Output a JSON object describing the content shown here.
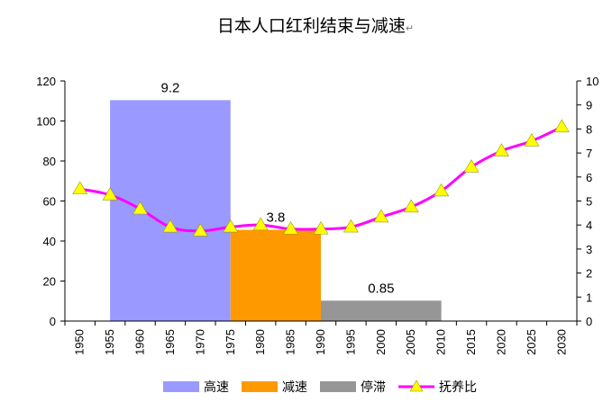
{
  "chart_data": {
    "type": "bar+line",
    "title": "日本人口红利结束与减速",
    "title_mark": "↵",
    "x": [
      "1950",
      "1955",
      "1960",
      "1965",
      "1970",
      "1975",
      "1980",
      "1985",
      "1990",
      "1995",
      "2000",
      "2005",
      "2010",
      "2015",
      "2020",
      "2025",
      "2030"
    ],
    "ylim_left": [
      0,
      120
    ],
    "yticks_left": [
      0,
      20,
      40,
      60,
      80,
      100,
      120
    ],
    "ylim_right": [
      0,
      10
    ],
    "yticks_right": [
      0,
      1,
      2,
      3,
      4,
      5,
      6,
      7,
      8,
      9,
      10
    ],
    "grid": false,
    "legend_position": "bottom",
    "bars": [
      {
        "name": "高速",
        "value": 9.2,
        "label": "9.2",
        "from": "1955",
        "to": "1975",
        "color": "#9999ff"
      },
      {
        "name": "减速",
        "value": 3.8,
        "label": "3.8",
        "from": "1975",
        "to": "1990",
        "color": "#ff9900"
      },
      {
        "name": "停滞",
        "value": 0.85,
        "label": "0.85",
        "from": "1990",
        "to": "2010",
        "color": "#969696"
      }
    ],
    "series": [
      {
        "name": "抚养比",
        "axis": "left",
        "color": "#ff00ff",
        "marker": "triangle",
        "marker_color": "#ffff00",
        "values": [
          66,
          63,
          56,
          47,
          45,
          47,
          48,
          46,
          46,
          47,
          52,
          57,
          65,
          77,
          85,
          90,
          97
        ]
      }
    ]
  }
}
